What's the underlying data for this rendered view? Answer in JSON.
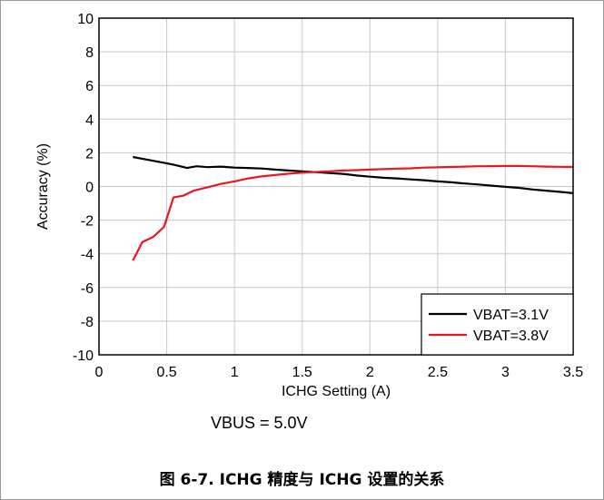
{
  "chart_data": {
    "type": "line",
    "xlabel": "ICHG Setting (A)",
    "ylabel": "Accuracy (%)",
    "xlim": [
      0,
      3.5
    ],
    "ylim": [
      -10,
      10
    ],
    "x_ticks": [
      "0",
      "0.5",
      "1",
      "1.5",
      "2",
      "2.5",
      "3",
      "3.5"
    ],
    "y_ticks": [
      "-10",
      "-8",
      "-6",
      "-4",
      "-2",
      "0",
      "2",
      "4",
      "6",
      "8",
      "10"
    ],
    "grid": true,
    "legend_position": "bottom-right",
    "series": [
      {
        "name": "VBAT=3.1V",
        "color": "#000000",
        "x": [
          0.25,
          0.35,
          0.45,
          0.55,
          0.65,
          0.72,
          0.8,
          0.9,
          1.0,
          1.1,
          1.2,
          1.3,
          1.4,
          1.5,
          1.6,
          1.7,
          1.8,
          1.9,
          2.0,
          2.1,
          2.2,
          2.3,
          2.4,
          2.5,
          2.6,
          2.7,
          2.8,
          2.9,
          3.0,
          3.1,
          3.2,
          3.3,
          3.4,
          3.5
        ],
        "y": [
          1.75,
          1.6,
          1.45,
          1.3,
          1.1,
          1.2,
          1.15,
          1.18,
          1.12,
          1.1,
          1.07,
          1.0,
          0.95,
          0.9,
          0.85,
          0.8,
          0.75,
          0.65,
          0.58,
          0.52,
          0.48,
          0.42,
          0.37,
          0.3,
          0.25,
          0.18,
          0.12,
          0.05,
          -0.02,
          -0.08,
          -0.18,
          -0.25,
          -0.32,
          -0.4
        ]
      },
      {
        "name": "VBAT=3.8V",
        "color": "#e8181e",
        "x": [
          0.25,
          0.32,
          0.4,
          0.48,
          0.55,
          0.62,
          0.7,
          0.8,
          0.9,
          1.0,
          1.1,
          1.2,
          1.3,
          1.4,
          1.5,
          1.6,
          1.7,
          1.8,
          1.9,
          2.0,
          2.1,
          2.2,
          2.3,
          2.4,
          2.5,
          2.6,
          2.7,
          2.8,
          2.9,
          3.0,
          3.1,
          3.2,
          3.3,
          3.4,
          3.5
        ],
        "y": [
          -4.4,
          -3.3,
          -3.0,
          -2.4,
          -0.65,
          -0.55,
          -0.25,
          -0.05,
          0.15,
          0.3,
          0.48,
          0.6,
          0.68,
          0.76,
          0.82,
          0.86,
          0.9,
          0.95,
          0.97,
          1.0,
          1.03,
          1.06,
          1.08,
          1.12,
          1.14,
          1.16,
          1.18,
          1.2,
          1.21,
          1.22,
          1.22,
          1.2,
          1.18,
          1.17,
          1.16
        ]
      }
    ]
  },
  "note": "VBUS = 5.0V",
  "caption": "图 6-7. ICHG 精度与 ICHG 设置的关系"
}
